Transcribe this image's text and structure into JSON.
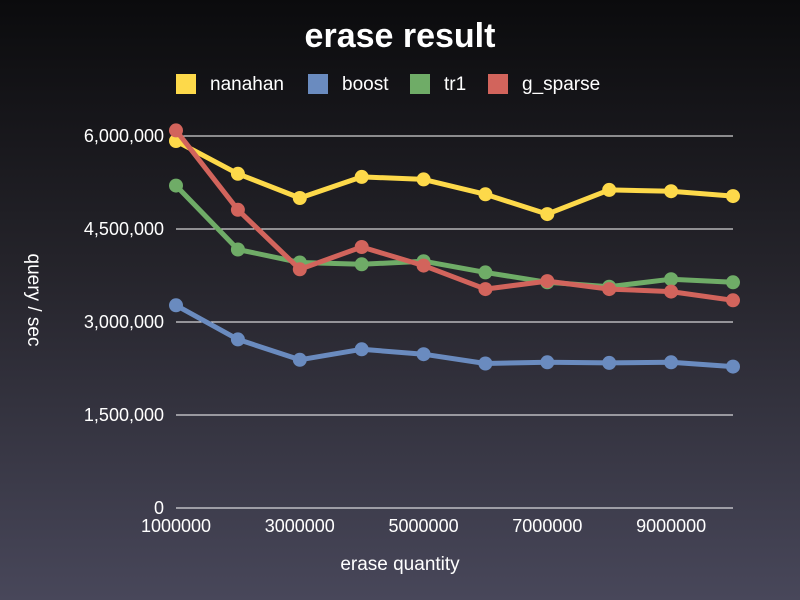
{
  "chart_data": {
    "type": "line",
    "title": "erase result",
    "xlabel": "erase quantity",
    "ylabel": "query / sec",
    "x": [
      1000000,
      2000000,
      3000000,
      4000000,
      5000000,
      6000000,
      7000000,
      8000000,
      9000000,
      10000000
    ],
    "xlim": [
      1000000,
      10000000
    ],
    "x_tick_labels": [
      "1000000",
      "3000000",
      "5000000",
      "7000000",
      "9000000"
    ],
    "x_tick_values": [
      1000000,
      3000000,
      5000000,
      7000000,
      9000000
    ],
    "ylim": [
      0,
      6000000
    ],
    "y_tick_values": [
      0,
      1500000,
      3000000,
      4500000,
      6000000
    ],
    "y_tick_labels": [
      "0",
      "1,500,000",
      "3,000,000",
      "4,500,000",
      "6,000,000"
    ],
    "grid": true,
    "legend_position": "top",
    "series": [
      {
        "name": "nanahan",
        "color": "#fdd94a",
        "values": [
          5920000,
          5390000,
          5000000,
          5340000,
          5300000,
          5060000,
          4740000,
          5130000,
          5110000,
          5030000
        ]
      },
      {
        "name": "boost",
        "color": "#6a8bbf",
        "values": [
          3270000,
          2720000,
          2390000,
          2560000,
          2480000,
          2330000,
          2350000,
          2340000,
          2350000,
          2280000
        ]
      },
      {
        "name": "tr1",
        "color": "#6fac67",
        "values": [
          5200000,
          4170000,
          3960000,
          3930000,
          3980000,
          3800000,
          3640000,
          3570000,
          3690000,
          3640000
        ]
      },
      {
        "name": "g_sparse",
        "color": "#d2645c",
        "values": [
          6090000,
          4810000,
          3850000,
          4210000,
          3910000,
          3530000,
          3660000,
          3530000,
          3490000,
          3350000
        ]
      }
    ]
  }
}
